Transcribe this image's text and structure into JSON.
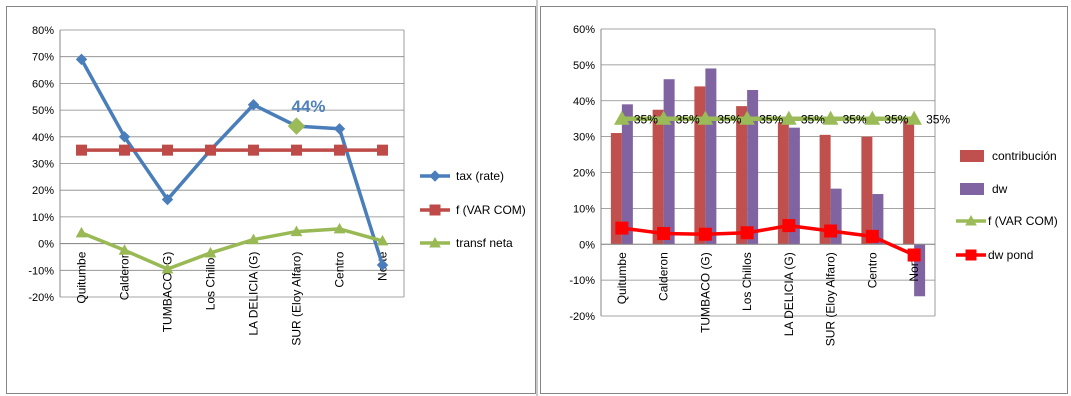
{
  "chart_data": [
    {
      "type": "line",
      "title": "",
      "categories": [
        "Quitumbe",
        "Calderon",
        "TUMBACO (G)",
        "Los Chillos",
        "LA DELICIA (G)",
        "SUR (Eloy Alfaro)",
        "Centro",
        "Norte"
      ],
      "ylim": [
        -0.2,
        0.8
      ],
      "yticks": [
        "-20%",
        "-10%",
        "0%",
        "10%",
        "20%",
        "30%",
        "40%",
        "50%",
        "60%",
        "70%",
        "80%"
      ],
      "grid": true,
      "legend_position": "right",
      "series": [
        {
          "name": "tax (rate)",
          "color": "#4A7EBB",
          "marker": "diamond",
          "values": [
            0.69,
            0.4,
            0.165,
            0.35,
            0.52,
            0.44,
            0.43,
            -0.08
          ]
        },
        {
          "name": "f (VAR COM)",
          "color": "#BE4B48",
          "marker": "square",
          "values": [
            0.35,
            0.35,
            0.35,
            0.35,
            0.35,
            0.35,
            0.35,
            0.35
          ]
        },
        {
          "name": "transf neta",
          "color": "#98B954",
          "marker": "triangle",
          "values": [
            0.04,
            -0.025,
            -0.095,
            -0.035,
            0.015,
            0.045,
            0.055,
            0.01
          ]
        }
      ],
      "annotations": [
        {
          "text": "44%",
          "series": "tax (rate)",
          "category": "SUR (Eloy Alfaro)",
          "color": "#4F81BD"
        }
      ],
      "highlight_point": {
        "series": "tax (rate)",
        "category": "SUR (Eloy Alfaro)",
        "color": "#9BBB59"
      }
    },
    {
      "type": "bar",
      "title": "",
      "categories": [
        "Quitumbe",
        "Calderon",
        "TUMBACO (G)",
        "Los Chillos",
        "LA DELICIA (G)",
        "SUR (Eloy Alfaro)",
        "Centro",
        "Norte"
      ],
      "ylim": [
        -0.2,
        0.6
      ],
      "yticks": [
        "-20%",
        "-10%",
        "0%",
        "10%",
        "20%",
        "30%",
        "40%",
        "50%",
        "60%"
      ],
      "grid": true,
      "legend_position": "right",
      "series": [
        {
          "name": "contribución",
          "kind": "bar",
          "color": "#C0504D",
          "values": [
            0.31,
            0.375,
            0.44,
            0.385,
            0.34,
            0.305,
            0.3,
            0.345
          ]
        },
        {
          "name": "dw",
          "kind": "bar",
          "color": "#8064A2",
          "values": [
            0.39,
            0.46,
            0.49,
            0.43,
            0.325,
            0.155,
            0.14,
            -0.145
          ]
        },
        {
          "name": "f (VAR COM)",
          "kind": "line",
          "color": "#9BBB59",
          "marker": "triangle",
          "values": [
            0.35,
            0.35,
            0.35,
            0.35,
            0.35,
            0.35,
            0.35,
            0.35
          ],
          "data_labels": [
            "35%",
            "35%",
            "35%",
            "35%",
            "35%",
            "35%",
            "35%",
            "35%"
          ]
        },
        {
          "name": "dw pond",
          "kind": "line",
          "color": "#FF0000",
          "marker": "square",
          "values": [
            0.045,
            0.03,
            0.028,
            0.032,
            0.052,
            0.037,
            0.022,
            -0.03
          ]
        }
      ]
    }
  ]
}
